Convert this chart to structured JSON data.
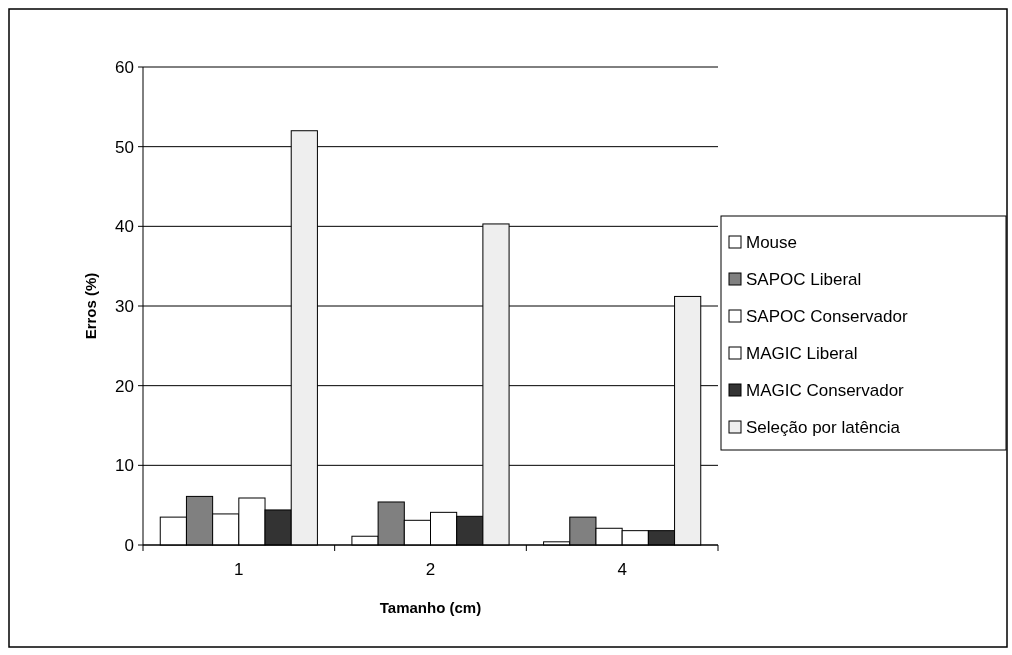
{
  "chart_data": {
    "type": "bar",
    "xlabel": "Tamanho (cm)",
    "ylabel": "Erros (%)",
    "categories": [
      "1",
      "2",
      "4"
    ],
    "series": [
      {
        "name": "Mouse",
        "color": "#ffffff",
        "values": [
          3.5,
          1.1,
          0.4
        ]
      },
      {
        "name": "SAPOC Liberal",
        "color": "#808080",
        "values": [
          6.1,
          5.4,
          3.5
        ]
      },
      {
        "name": "SAPOC Conservador",
        "color": "#ffffff",
        "values": [
          3.9,
          3.1,
          2.1
        ]
      },
      {
        "name": "MAGIC Liberal",
        "color": "#ffffff",
        "values": [
          5.9,
          4.1,
          1.8
        ]
      },
      {
        "name": "MAGIC Conservador",
        "color": "#333333",
        "values": [
          4.4,
          3.6,
          1.8
        ]
      },
      {
        "name": "Seleção por latência",
        "color": "#eeeeee",
        "values": [
          52,
          40.3,
          31.2
        ]
      }
    ],
    "ylim": [
      0,
      60
    ],
    "yticks": [
      0,
      10,
      20,
      30,
      40,
      50,
      60
    ],
    "grid": "y",
    "legend": "right"
  }
}
